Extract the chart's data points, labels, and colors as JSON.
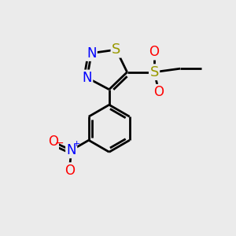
{
  "background_color": "#ebebeb",
  "atom_colors": {
    "N": "#0000ff",
    "S_ring": "#999900",
    "S_sulfonyl": "#999900",
    "O": "#ff0000"
  },
  "bond_color": "#000000",
  "bond_width": 2.0,
  "figsize": [
    3.0,
    3.0
  ],
  "dpi": 100,
  "xlim": [
    0,
    10
  ],
  "ylim": [
    0,
    10
  ],
  "font_size": 12
}
